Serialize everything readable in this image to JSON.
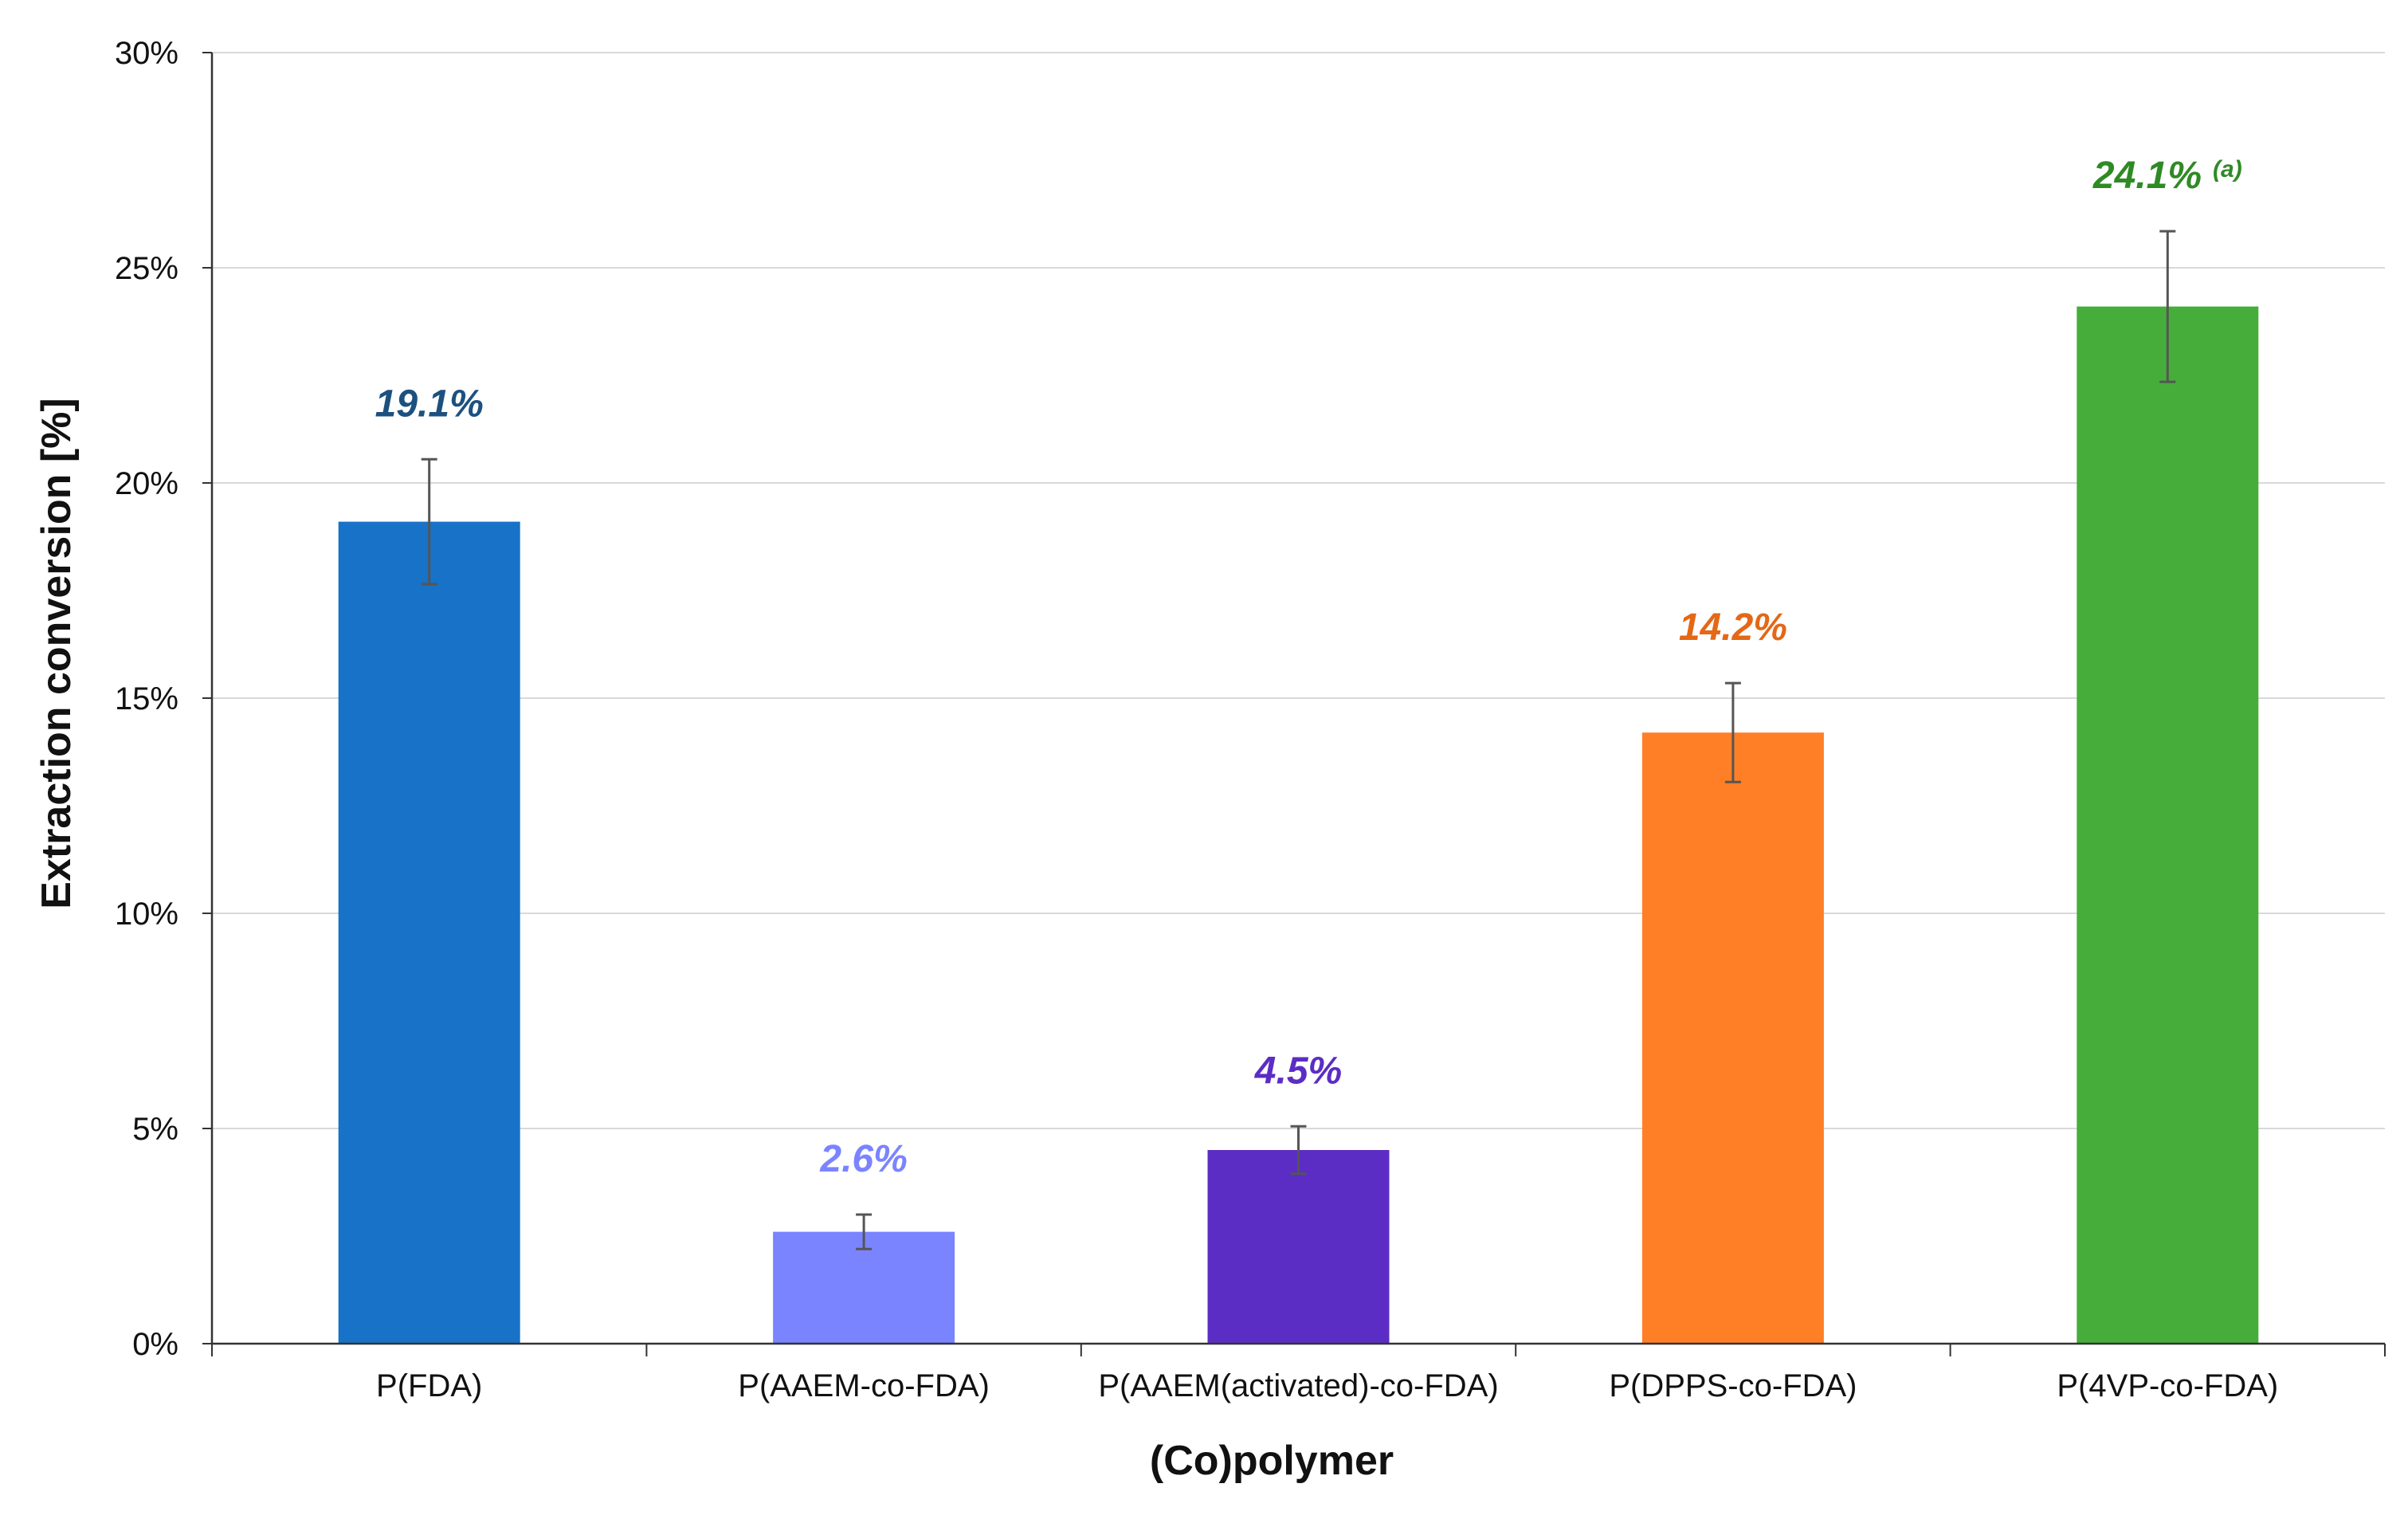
{
  "chart_data": {
    "type": "bar",
    "title": "",
    "xlabel": "(Co)polymer",
    "ylabel": "Extraction conversion [%]",
    "ylim": [
      0,
      30
    ],
    "ytick_step": 5,
    "ytick_suffix": "%",
    "grid": true,
    "legend": "none",
    "categories": [
      "P(FDA)",
      "P(AAEM-co-FDA)",
      "P(AAEM(activated)-co-FDA)",
      "P(DPPS-co-FDA)",
      "P(4VP-co-FDA)"
    ],
    "values": [
      19.1,
      2.6,
      4.5,
      14.2,
      24.1
    ],
    "errors": [
      1.45,
      0.4,
      0.55,
      1.15,
      1.75
    ],
    "data_labels": [
      "19.1%",
      "2.6%",
      "4.5%",
      "14.2%",
      "24.1%"
    ],
    "data_label_notes": [
      "",
      "",
      "",
      "",
      "(a)"
    ],
    "bar_colors": [
      "#1872C8",
      "#7B84FF",
      "#5C2DC4",
      "#FF7F27",
      "#46AD3A"
    ],
    "label_colors": [
      "#1C517F",
      "#7B84FF",
      "#5C2DC4",
      "#E46816",
      "#2F8A24"
    ]
  }
}
